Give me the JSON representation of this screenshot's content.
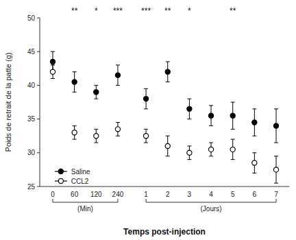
{
  "chart_data": {
    "type": "scatter",
    "title": "",
    "x_label": "Temps post-injection",
    "y_label": "Poids de retrait de la patte (g)",
    "x_groups": [
      {
        "label": "(Min)",
        "categories": [
          "0",
          "60",
          "120",
          "240"
        ]
      },
      {
        "label": "(Jours)",
        "categories": [
          "1",
          "2",
          "3",
          "4",
          "5",
          "6",
          "7"
        ]
      }
    ],
    "series": [
      {
        "name": "Saline",
        "color": "#000000",
        "marker": "filled_circle",
        "values": [
          43.5,
          40.5,
          39.0,
          41.5,
          38.0,
          42.0,
          36.5,
          35.5,
          35.5,
          34.5,
          34.0
        ],
        "errors": [
          1.5,
          1.5,
          1.0,
          1.5,
          1.5,
          1.5,
          1.5,
          1.5,
          2.0,
          2.0,
          2.5
        ]
      },
      {
        "name": "CCL2",
        "color": "#000000",
        "marker": "open_circle",
        "values": [
          42.0,
          33.0,
          32.5,
          33.5,
          32.5,
          31.0,
          30.0,
          30.5,
          30.5,
          28.5,
          27.5
        ],
        "errors": [
          1.0,
          1.0,
          1.0,
          1.0,
          1.0,
          1.5,
          1.0,
          1.0,
          1.5,
          1.5,
          2.0
        ]
      }
    ],
    "annotations": [
      null,
      "**",
      "*",
      "***",
      "***",
      "**",
      "*",
      null,
      "**",
      null,
      null
    ],
    "ylim": [
      25,
      50
    ],
    "yticks": [
      25,
      30,
      35,
      40,
      45,
      50
    ],
    "grid": false,
    "legend": "lower left"
  }
}
